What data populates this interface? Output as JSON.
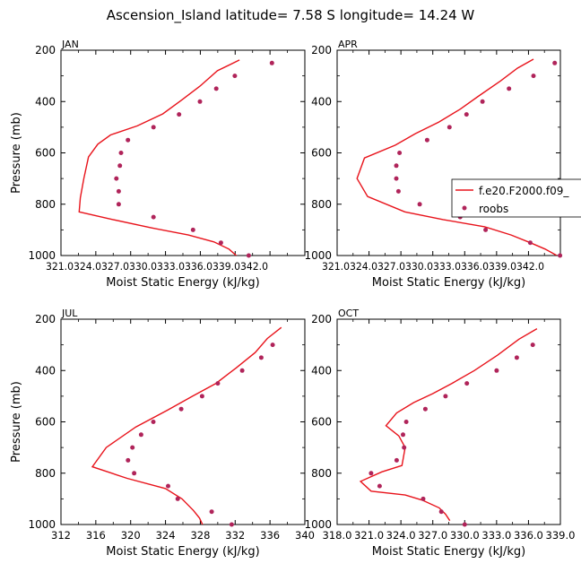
{
  "title": "Ascension_Island  latitude= 7.58 S longitude= 14.24 W",
  "ylabel": "Pressure (mb)",
  "xlabel": "Moist Static Energy (kJ/kg)",
  "colors": {
    "model": "#e8131b",
    "obs": "#b0245a",
    "axes": "#000000"
  },
  "legend": {
    "model_label": "f.e20.F2000.f09_",
    "obs_label": "roobs",
    "placement": "upper-right panel, right edge"
  },
  "chart_data": [
    {
      "type": "line",
      "panel": "JAN",
      "xlim": [
        321.03,
        342.03
      ],
      "ylim": [
        1000,
        200
      ],
      "xticks": [
        321.03,
        324.03,
        327.03,
        330.03,
        333.03,
        336.03,
        339.03,
        342.03
      ],
      "xtick_labels": [
        "321.03",
        "24.03",
        "27.03",
        "30.03",
        "33.03",
        "36.03",
        "39.03",
        "42.0"
      ],
      "yticks": [
        200,
        400,
        600,
        800,
        1000
      ],
      "series": [
        {
          "name": "f.e20.F2000.f09_",
          "kind": "line",
          "points": [
            [
              336.4,
              238
            ],
            [
              334.5,
              280
            ],
            [
              333.0,
              340
            ],
            [
              331.4,
              395
            ],
            [
              329.8,
              448
            ],
            [
              327.6,
              495
            ],
            [
              325.3,
              530
            ],
            [
              324.2,
              566
            ],
            [
              323.4,
              616
            ],
            [
              323.0,
              700
            ],
            [
              322.7,
              775
            ],
            [
              322.6,
              830
            ],
            [
              325.5,
              860
            ],
            [
              328.8,
              892
            ],
            [
              332.0,
              920
            ],
            [
              334.2,
              947
            ],
            [
              335.5,
              975
            ],
            [
              336.2,
              1003
            ]
          ]
        },
        {
          "name": "roobs",
          "kind": "scatter",
          "points": [
            [
              339.2,
              250
            ],
            [
              336.0,
              300
            ],
            [
              334.4,
              350
            ],
            [
              333.0,
              400
            ],
            [
              331.2,
              450
            ],
            [
              329.0,
              500
            ],
            [
              326.8,
              550
            ],
            [
              326.2,
              600
            ],
            [
              326.1,
              650
            ],
            [
              325.8,
              700
            ],
            [
              326.0,
              750
            ],
            [
              326.0,
              800
            ],
            [
              329.0,
              850
            ],
            [
              332.4,
              900
            ],
            [
              334.8,
              950
            ],
            [
              337.2,
              1000
            ]
          ]
        }
      ]
    },
    {
      "type": "line",
      "panel": "APR",
      "xlim": [
        321.03,
        342.03
      ],
      "ylim": [
        1000,
        200
      ],
      "xticks": [
        321.03,
        324.03,
        327.03,
        330.03,
        333.03,
        336.03,
        339.03,
        342.03
      ],
      "xtick_labels": [
        "321.03",
        "24.03",
        "27.03",
        "30.03",
        "33.03",
        "36.03",
        "39.03",
        "42.0"
      ],
      "yticks": [
        200,
        400,
        600,
        800,
        1000
      ],
      "series": [
        {
          "name": "f.e20.F2000.f09_",
          "kind": "line",
          "points": [
            [
              339.5,
              235
            ],
            [
              338.0,
              270
            ],
            [
              336.4,
              320
            ],
            [
              334.3,
              380
            ],
            [
              332.6,
              430
            ],
            [
              330.6,
              480
            ],
            [
              328.4,
              525
            ],
            [
              326.5,
              570
            ],
            [
              323.6,
              620
            ],
            [
              322.9,
              700
            ],
            [
              323.9,
              770
            ],
            [
              327.4,
              830
            ],
            [
              331.0,
              860
            ],
            [
              334.9,
              888
            ],
            [
              337.4,
              920
            ],
            [
              339.2,
              950
            ],
            [
              340.6,
              975
            ],
            [
              341.7,
              1000
            ]
          ]
        },
        {
          "name": "roobs",
          "kind": "scatter",
          "points": [
            [
              341.5,
              250
            ],
            [
              339.5,
              300
            ],
            [
              337.2,
              350
            ],
            [
              334.7,
              400
            ],
            [
              333.2,
              450
            ],
            [
              331.6,
              500
            ],
            [
              329.5,
              550
            ],
            [
              326.9,
              600
            ],
            [
              326.6,
              650
            ],
            [
              326.6,
              700
            ],
            [
              326.8,
              750
            ],
            [
              328.8,
              800
            ],
            [
              332.6,
              850
            ],
            [
              335.0,
              900
            ],
            [
              339.2,
              950
            ],
            [
              342.0,
              1000
            ]
          ]
        }
      ]
    },
    {
      "type": "line",
      "panel": "JUL",
      "xlim": [
        312,
        340
      ],
      "ylim": [
        1000,
        200
      ],
      "xticks": [
        312,
        316,
        320,
        324,
        328,
        332,
        336,
        340
      ],
      "xtick_labels": [
        "312",
        "316",
        "320",
        "324",
        "328",
        "332",
        "336",
        "340"
      ],
      "yticks": [
        200,
        400,
        600,
        800,
        1000
      ],
      "series": [
        {
          "name": "f.e20.F2000.f09_",
          "kind": "line",
          "points": [
            [
              337.3,
              232
            ],
            [
              335.7,
              275
            ],
            [
              334.3,
              330
            ],
            [
              332.1,
              390
            ],
            [
              329.8,
              450
            ],
            [
              327.1,
              500
            ],
            [
              324.2,
              555
            ],
            [
              320.6,
              620
            ],
            [
              317.2,
              700
            ],
            [
              315.6,
              775
            ],
            [
              319.6,
              820
            ],
            [
              324.0,
              860
            ],
            [
              325.9,
              900
            ],
            [
              327.2,
              945
            ],
            [
              327.9,
              975
            ],
            [
              328.3,
              1003
            ]
          ]
        },
        {
          "name": "roobs",
          "kind": "scatter",
          "points": [
            [
              336.3,
              300
            ],
            [
              335.0,
              350
            ],
            [
              332.8,
              400
            ],
            [
              330.0,
              450
            ],
            [
              328.2,
              500
            ],
            [
              325.8,
              550
            ],
            [
              322.6,
              600
            ],
            [
              321.2,
              650
            ],
            [
              320.2,
              700
            ],
            [
              319.7,
              750
            ],
            [
              320.4,
              800
            ],
            [
              324.3,
              850
            ],
            [
              325.4,
              900
            ],
            [
              329.3,
              950
            ],
            [
              331.6,
              1000
            ]
          ]
        }
      ]
    },
    {
      "type": "line",
      "panel": "OCT",
      "xlim": [
        318.0,
        339.0
      ],
      "ylim": [
        1000,
        200
      ],
      "xticks": [
        318.0,
        321.0,
        324.0,
        327.0,
        330.0,
        333.0,
        336.0,
        339.0
      ],
      "xtick_labels": [
        "318.0",
        "321.0",
        "324.0",
        "327.0",
        "330.0",
        "333.0",
        "336.0",
        "339.0"
      ],
      "yticks": [
        200,
        400,
        600,
        800,
        1000
      ],
      "series": [
        {
          "name": "f.e20.F2000.f09_",
          "kind": "line",
          "points": [
            [
              336.8,
              237
            ],
            [
              335.1,
              278
            ],
            [
              333.1,
              340
            ],
            [
              330.9,
              400
            ],
            [
              328.8,
              450
            ],
            [
              327.0,
              490
            ],
            [
              325.2,
              525
            ],
            [
              323.6,
              565
            ],
            [
              322.6,
              615
            ],
            [
              323.8,
              655
            ],
            [
              324.4,
              700
            ],
            [
              324.1,
              770
            ],
            [
              322.2,
              795
            ],
            [
              320.2,
              832
            ],
            [
              321.2,
              870
            ],
            [
              324.4,
              885
            ],
            [
              326.0,
              905
            ],
            [
              327.6,
              935
            ],
            [
              328.2,
              960
            ],
            [
              328.6,
              985
            ]
          ]
        },
        {
          "name": "roobs",
          "kind": "scatter",
          "points": [
            [
              336.4,
              300
            ],
            [
              334.9,
              350
            ],
            [
              333.0,
              400
            ],
            [
              330.2,
              450
            ],
            [
              328.2,
              500
            ],
            [
              326.3,
              550
            ],
            [
              324.5,
              600
            ],
            [
              324.2,
              650
            ],
            [
              324.3,
              700
            ],
            [
              323.6,
              750
            ],
            [
              321.2,
              800
            ],
            [
              322.0,
              850
            ],
            [
              326.1,
              900
            ],
            [
              327.8,
              950
            ],
            [
              330.0,
              1000
            ]
          ]
        }
      ]
    }
  ]
}
